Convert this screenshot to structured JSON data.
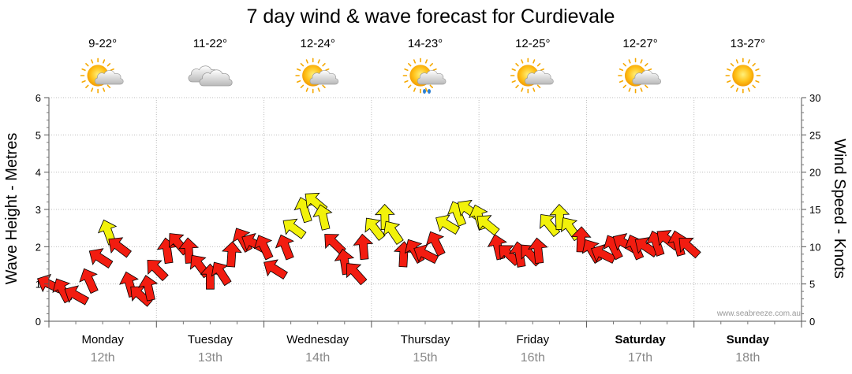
{
  "chart_data": {
    "type": "line",
    "title": "7 day wind & wave forecast for Curdievale",
    "ylabel_left": "Wave Height - Metres",
    "ylabel_right": "Wind Speed - Knots",
    "ylim_left": [
      0,
      6
    ],
    "ylim_right": [
      0,
      30
    ],
    "yticks_left": [
      "0",
      "1",
      "2",
      "3",
      "4",
      "5",
      "6"
    ],
    "yticks_right": [
      "0",
      "5",
      "10",
      "15",
      "20",
      "25",
      "30"
    ],
    "days": [
      {
        "name": "Monday",
        "date": "12th",
        "temp": "9-22°",
        "icon": "partly-cloudy-icon",
        "bold": false
      },
      {
        "name": "Tuesday",
        "date": "13th",
        "temp": "11-22°",
        "icon": "cloudy-icon",
        "bold": false
      },
      {
        "name": "Wednesday",
        "date": "14th",
        "temp": "12-24°",
        "icon": "partly-cloudy-icon",
        "bold": false
      },
      {
        "name": "Thursday",
        "date": "15th",
        "temp": "14-23°",
        "icon": "partly-cloudy-showers-icon",
        "bold": false
      },
      {
        "name": "Friday",
        "date": "16th",
        "temp": "12-25°",
        "icon": "partly-cloudy-icon",
        "bold": false
      },
      {
        "name": "Saturday",
        "date": "17th",
        "temp": "12-27°",
        "icon": "partly-cloudy-icon",
        "bold": true
      },
      {
        "name": "Sunday",
        "date": "18th",
        "temp": "13-27°",
        "icon": "sunny-icon",
        "bold": true
      }
    ],
    "wind_knots": [
      [
        0.0,
        5.0,
        5.5
      ],
      [
        0.25,
        4.2,
        5.0
      ],
      [
        0.5,
        3.5,
        5.5
      ],
      [
        0.75,
        5.5,
        6.0
      ],
      [
        0.95,
        8.5,
        9.5
      ],
      [
        1.1,
        12.0,
        12.0
      ],
      [
        1.3,
        10.0,
        11.0
      ],
      [
        1.5,
        5.0,
        10.0
      ],
      [
        1.7,
        3.5,
        10.5
      ],
      [
        1.85,
        4.5,
        10.5
      ],
      [
        2.0,
        7.0,
        11.5
      ],
      [
        2.2,
        9.5,
        12.0
      ],
      [
        2.4,
        10.5,
        12.0
      ],
      [
        2.6,
        9.5,
        12.0
      ],
      [
        2.8,
        7.5,
        11.5
      ],
      [
        3.0,
        6.0,
        11.0
      ],
      [
        3.2,
        6.5,
        11.5
      ],
      [
        3.4,
        9.0,
        12.0
      ],
      [
        3.6,
        11.0,
        12.0
      ],
      [
        3.8,
        10.5,
        11.5
      ],
      [
        4.0,
        10.0,
        9.5
      ],
      [
        4.2,
        7.0,
        7.0
      ],
      [
        4.4,
        10.0,
        11.0
      ],
      [
        4.55,
        12.5,
        11.5
      ],
      [
        4.75,
        15.0,
        12.5
      ],
      [
        4.95,
        16.0,
        12.0
      ],
      [
        5.1,
        14.0,
        12.0
      ],
      [
        5.3,
        10.5,
        10.0
      ],
      [
        5.5,
        8.0,
        10.0
      ],
      [
        5.7,
        6.5,
        10.5
      ],
      [
        5.85,
        10.0,
        11.5
      ],
      [
        6.05,
        12.5,
        12.0
      ],
      [
        6.25,
        14.0,
        12.0
      ],
      [
        6.4,
        12.0,
        11.5
      ],
      [
        6.6,
        9.0,
        10.5
      ],
      [
        6.8,
        9.5,
        11.0
      ],
      [
        7.0,
        9.0,
        11.5
      ],
      [
        7.2,
        10.5,
        12.0
      ],
      [
        7.4,
        13.0,
        12.5
      ],
      [
        7.6,
        14.5,
        13.5
      ],
      [
        7.8,
        15.0,
        12.5
      ],
      [
        8.0,
        14.0,
        12.0
      ],
      [
        8.15,
        13.0,
        11.5
      ],
      [
        8.35,
        10.0,
        10.5
      ],
      [
        8.55,
        9.0,
        10.5
      ],
      [
        8.75,
        9.0,
        10.5
      ],
      [
        8.95,
        9.0,
        11.0
      ],
      [
        9.1,
        9.5,
        11.0
      ],
      [
        9.3,
        13.0,
        12.5
      ],
      [
        9.5,
        14.0,
        13.5
      ],
      [
        9.7,
        12.5,
        13.5
      ],
      [
        9.9,
        11.0,
        12.0
      ],
      [
        10.1,
        9.5,
        11.0
      ],
      [
        10.3,
        9.0,
        11.0
      ],
      [
        10.5,
        10.0,
        11.0
      ],
      [
        10.7,
        10.5,
        10.5
      ],
      [
        10.9,
        10.0,
        10.5
      ],
      [
        11.1,
        10.0,
        10.0
      ],
      [
        11.3,
        10.5,
        10.5
      ],
      [
        11.5,
        11.0,
        10.0
      ],
      [
        11.7,
        10.5,
        10.5
      ],
      [
        11.9,
        10.0,
        10.0
      ]
    ],
    "credit": "www.seabreeze.com.au"
  }
}
